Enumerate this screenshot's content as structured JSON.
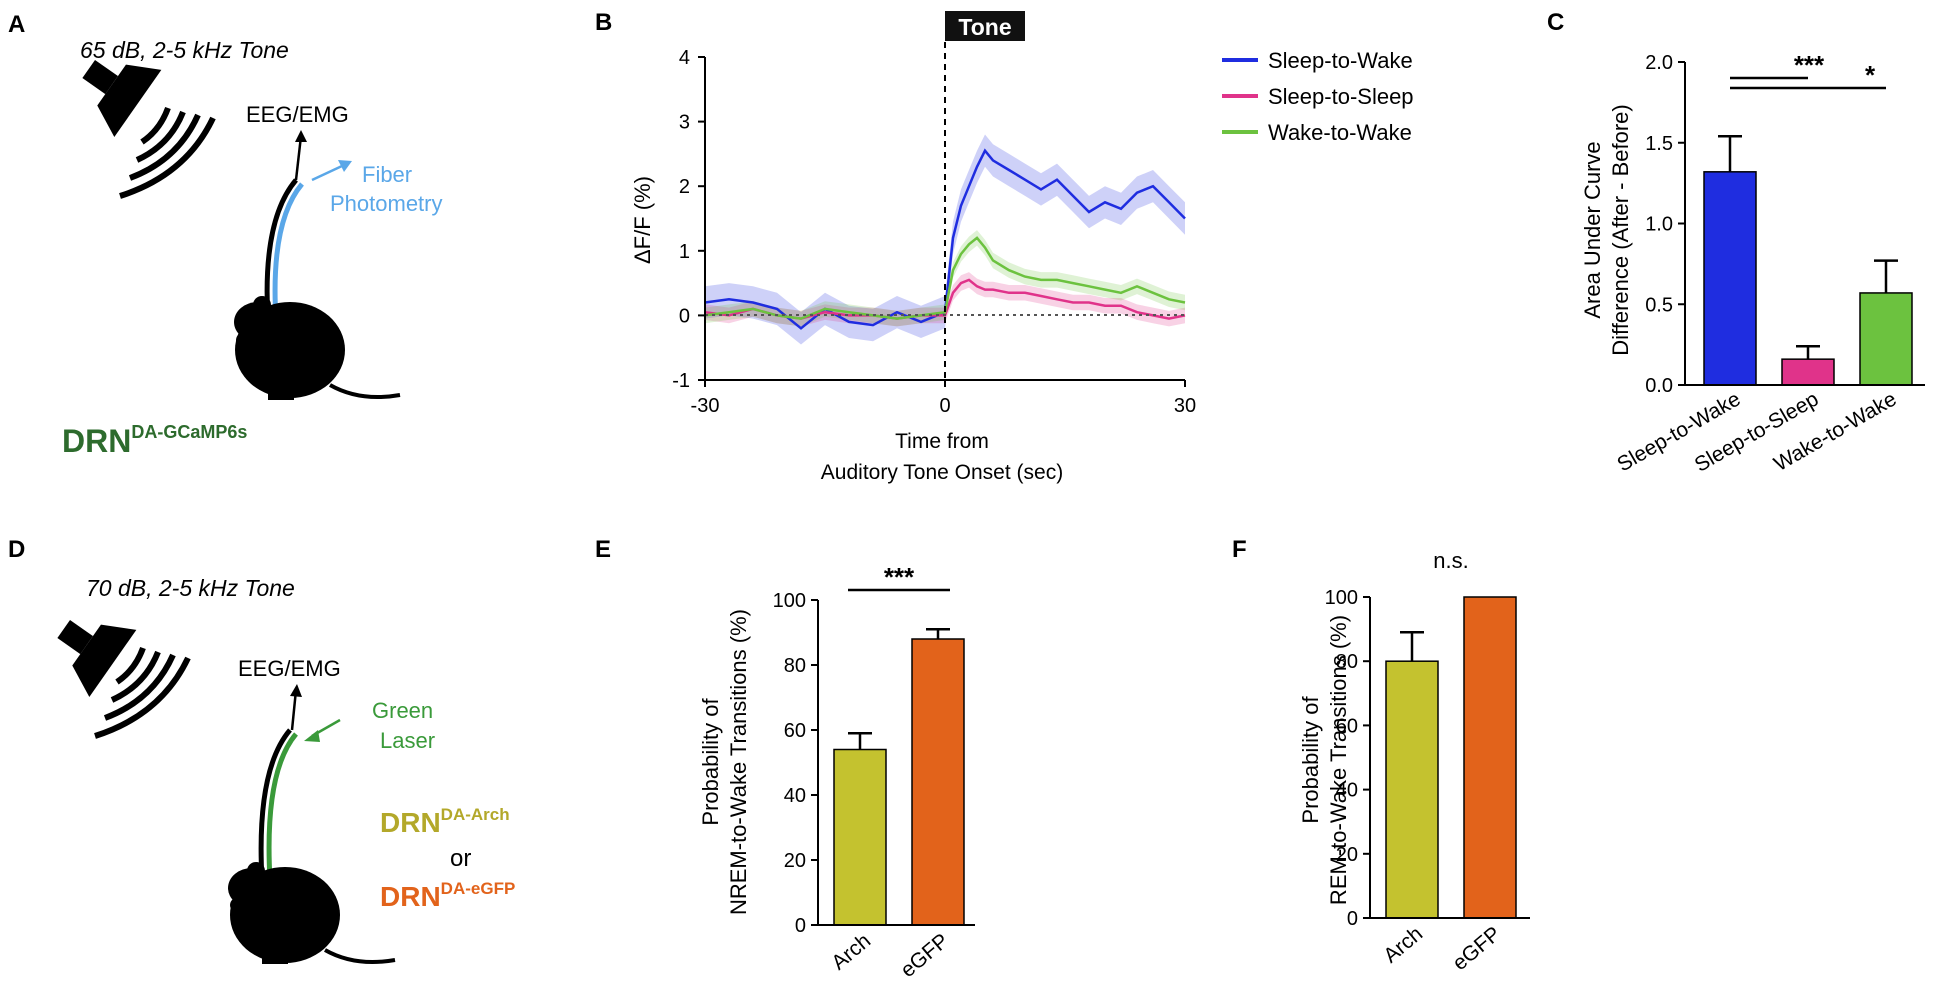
{
  "panels": {
    "A": {
      "letter": "A",
      "tone_label": "65 dB, 2-5 kHz Tone",
      "recording_label": "EEG/EMG",
      "fiber_line1": "Fiber",
      "fiber_line2": "Photometry",
      "mouse_base": "DRN",
      "mouse_sup": "DA-GCaMP6s"
    },
    "D": {
      "letter": "D",
      "tone_label": "70 dB, 2-5 kHz Tone",
      "recording_label": "EEG/EMG",
      "laser_line1": "Green",
      "laser_line2": "Laser",
      "mouse1_base": "DRN",
      "mouse1_sup": "DA-Arch",
      "or_label": "or",
      "mouse2_base": "DRN",
      "mouse2_sup": "DA-eGFP"
    },
    "B": {
      "letter": "B"
    },
    "C": {
      "letter": "C"
    },
    "E": {
      "letter": "E"
    },
    "F": {
      "letter": "F"
    }
  },
  "colors": {
    "blue": "#1f2de0",
    "magenta": "#e0338a",
    "green": "#6cc23f",
    "olive": "#c4c22f",
    "orange": "#e2631b",
    "fiber_blue": "#5aa7e8",
    "laser_green": "#3a9a3a",
    "dark_green": "#2d6b2d",
    "olive_text": "#b3a82a"
  },
  "chart_data": [
    {
      "id": "B",
      "type": "line",
      "title": "Tone",
      "xlabel_line1": "Time from",
      "xlabel_line2": "Auditory Tone Onset (sec)",
      "ylabel": "ΔF/F (%)",
      "xlim": [
        -30,
        30
      ],
      "ylim": [
        -1,
        4
      ],
      "xticks": [
        "-30",
        "0",
        "30"
      ],
      "yticks": [
        "-1",
        "0",
        "1",
        "2",
        "3",
        "4"
      ],
      "x": [
        -30,
        -27,
        -24,
        -21,
        -18,
        -15,
        -12,
        -9,
        -6,
        -3,
        0,
        1,
        2,
        3,
        4,
        5,
        6,
        8,
        10,
        12,
        14,
        16,
        18,
        20,
        22,
        24,
        26,
        28,
        30
      ],
      "series": [
        {
          "name": "Sleep-to-Wake",
          "color": "#1f2de0",
          "values": [
            0.2,
            0.25,
            0.2,
            0.1,
            -0.2,
            0.1,
            -0.1,
            -0.15,
            0.05,
            -0.1,
            0.05,
            1.2,
            1.7,
            2.0,
            2.3,
            2.55,
            2.4,
            2.25,
            2.1,
            1.95,
            2.1,
            1.85,
            1.6,
            1.75,
            1.65,
            1.9,
            2.0,
            1.75,
            1.5
          ],
          "sem": 0.25
        },
        {
          "name": "Sleep-to-Sleep",
          "color": "#e0338a",
          "values": [
            0.05,
            0.0,
            0.1,
            0.0,
            -0.05,
            0.05,
            0.0,
            0.0,
            -0.05,
            0.0,
            0.0,
            0.35,
            0.5,
            0.55,
            0.45,
            0.4,
            0.4,
            0.35,
            0.35,
            0.3,
            0.25,
            0.2,
            0.2,
            0.15,
            0.15,
            0.05,
            0.0,
            -0.05,
            0.0
          ],
          "sem": 0.12
        },
        {
          "name": "Wake-to-Wake",
          "color": "#6cc23f",
          "values": [
            0.0,
            0.05,
            0.1,
            0.0,
            -0.05,
            0.1,
            0.05,
            0.0,
            -0.05,
            0.0,
            0.05,
            0.7,
            0.95,
            1.1,
            1.2,
            1.05,
            0.85,
            0.7,
            0.6,
            0.55,
            0.55,
            0.5,
            0.45,
            0.4,
            0.35,
            0.45,
            0.35,
            0.25,
            0.2
          ],
          "sem": 0.12
        }
      ]
    },
    {
      "id": "C",
      "type": "bar",
      "ylabel_line1": "Area Under Curve",
      "ylabel_line2": "Difference (After - Before)",
      "categories": [
        "Sleep-to-Wake",
        "Sleep-to-Sleep",
        "Wake-to-Wake"
      ],
      "values": [
        1.32,
        0.16,
        0.57
      ],
      "errors": [
        0.22,
        0.08,
        0.2
      ],
      "colors": [
        "#1f2de0",
        "#e0338a",
        "#6cc23f"
      ],
      "ylim": [
        0,
        2.0
      ],
      "yticks": [
        "0.0",
        "0.5",
        "1.0",
        "1.5",
        "2.0"
      ],
      "significance": [
        {
          "from": 0,
          "to": 1,
          "label": "***"
        },
        {
          "from": 0,
          "to": 2,
          "label": "*"
        }
      ]
    },
    {
      "id": "E",
      "type": "bar",
      "ylabel_line1": "Probability of",
      "ylabel_line2": "NREM-to-Wake Transitions (%)",
      "categories": [
        "Arch",
        "eGFP"
      ],
      "values": [
        54,
        88
      ],
      "errors": [
        5,
        3
      ],
      "colors": [
        "#c4c22f",
        "#e2631b"
      ],
      "ylim": [
        0,
        100
      ],
      "yticks": [
        "0",
        "20",
        "40",
        "60",
        "80",
        "100"
      ],
      "significance": [
        {
          "from": 0,
          "to": 1,
          "label": "***"
        }
      ]
    },
    {
      "id": "F",
      "type": "bar",
      "ylabel_line1": "Probability of",
      "ylabel_line2": "REM-to-Wake Transitions (%)",
      "categories": [
        "Arch",
        "eGFP"
      ],
      "values": [
        80,
        100
      ],
      "errors": [
        9,
        0
      ],
      "colors": [
        "#c4c22f",
        "#e2631b"
      ],
      "ylim": [
        0,
        100
      ],
      "yticks": [
        "0",
        "20",
        "40",
        "60",
        "80",
        "100"
      ],
      "significance": [
        {
          "from": 0,
          "to": 1,
          "label": "n.s."
        }
      ]
    }
  ]
}
